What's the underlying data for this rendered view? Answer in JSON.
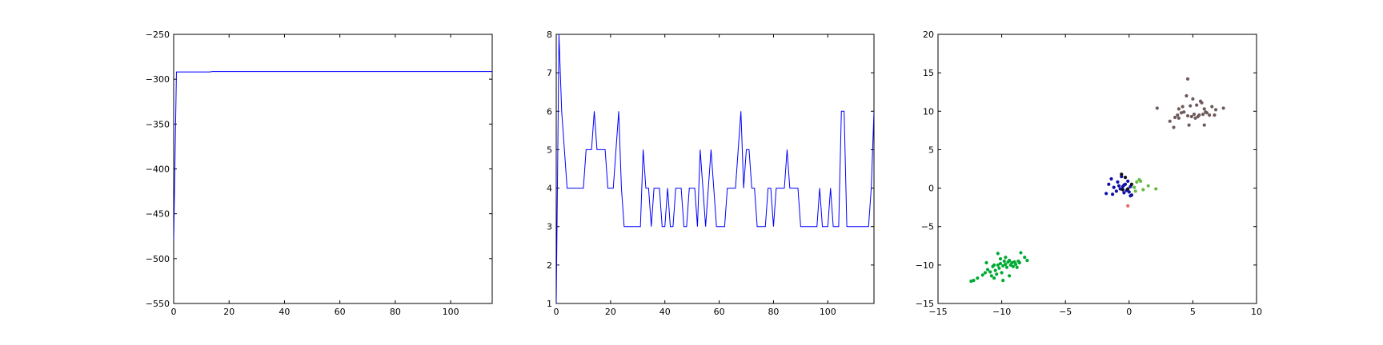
{
  "chart_data": [
    {
      "type": "line",
      "xlim": [
        0,
        115
      ],
      "ylim": [
        -550,
        -250
      ],
      "xticks": [
        "0",
        "20",
        "40",
        "60",
        "80",
        "100"
      ],
      "yticks": [
        "−550",
        "−500",
        "−450",
        "−400",
        "−350",
        "−300",
        "−250"
      ],
      "series": [
        {
          "color": "#0000ff",
          "x": [
            0,
            1,
            13,
            14,
            20,
            40,
            60,
            80,
            100,
            115
          ],
          "y": [
            -480,
            -292,
            -292,
            -291.5,
            -291.5,
            -291.5,
            -291.5,
            -291.5,
            -291.5,
            -291.5
          ]
        }
      ],
      "grid": false
    },
    {
      "type": "line",
      "xlim": [
        0,
        117
      ],
      "ylim": [
        1,
        8
      ],
      "xticks": [
        "0",
        "20",
        "40",
        "60",
        "80",
        "100"
      ],
      "yticks": [
        "1",
        "2",
        "3",
        "4",
        "5",
        "6",
        "7",
        "8"
      ],
      "series": [
        {
          "color": "#0000ff",
          "x": [
            0,
            1,
            2,
            3,
            4,
            5,
            6,
            7,
            8,
            9,
            10,
            11,
            12,
            13,
            14,
            15,
            16,
            17,
            18,
            19,
            20,
            21,
            22,
            23,
            24,
            25,
            26,
            27,
            28,
            29,
            30,
            31,
            32,
            33,
            34,
            35,
            36,
            37,
            38,
            39,
            40,
            41,
            42,
            43,
            44,
            45,
            46,
            47,
            48,
            49,
            50,
            51,
            52,
            53,
            54,
            55,
            56,
            57,
            58,
            59,
            60,
            61,
            62,
            63,
            64,
            65,
            66,
            67,
            68,
            69,
            70,
            71,
            72,
            73,
            74,
            75,
            76,
            77,
            78,
            79,
            80,
            81,
            82,
            83,
            84,
            85,
            86,
            87,
            88,
            89,
            90,
            91,
            92,
            93,
            94,
            95,
            96,
            97,
            98,
            99,
            100,
            101,
            102,
            103,
            104,
            105,
            106,
            107,
            108,
            109,
            110,
            111,
            112,
            113,
            114,
            115,
            116,
            117
          ],
          "y": [
            1,
            8,
            6,
            5,
            4,
            4,
            4,
            4,
            4,
            4,
            4,
            5,
            5,
            5,
            6,
            5,
            5,
            5,
            5,
            4,
            4,
            4,
            5,
            6,
            4,
            3,
            3,
            3,
            3,
            3,
            3,
            3,
            5,
            4,
            4,
            3,
            4,
            4,
            4,
            3,
            3,
            4,
            3,
            3,
            4,
            4,
            4,
            3,
            3,
            4,
            4,
            4,
            3,
            5,
            4,
            3,
            4,
            5,
            4,
            3,
            3,
            3,
            3,
            4,
            4,
            4,
            4,
            5,
            6,
            4,
            5,
            5,
            4,
            4,
            3,
            3,
            3,
            3,
            4,
            4,
            3,
            4,
            4,
            4,
            4,
            5,
            4,
            4,
            4,
            4,
            3,
            3,
            3,
            3,
            3,
            3,
            3,
            4,
            3,
            3,
            3,
            4,
            3,
            3,
            3,
            6,
            6,
            3,
            3,
            3,
            3,
            3,
            3,
            3,
            3,
            3,
            4,
            6
          ]
        }
      ],
      "grid": false
    },
    {
      "type": "scatter",
      "xlim": [
        -15,
        10
      ],
      "ylim": [
        -15,
        20
      ],
      "xticks": [
        "−15",
        "−10",
        "−5",
        "0",
        "5",
        "10"
      ],
      "yticks": [
        "−15",
        "−10",
        "−5",
        "0",
        "5",
        "10",
        "15",
        "20"
      ],
      "series": [
        {
          "color": "#00aa33",
          "points": [
            [
              -12.4,
              -12.1
            ],
            [
              -12.2,
              -12
            ],
            [
              -11.9,
              -11.7
            ],
            [
              -11.5,
              -11.3
            ],
            [
              -11.3,
              -11
            ],
            [
              -11.1,
              -10.6
            ],
            [
              -10.9,
              -10.9
            ],
            [
              -10.8,
              -11.4
            ],
            [
              -10.7,
              -10.2
            ],
            [
              -10.6,
              -11.7
            ],
            [
              -10.5,
              -10.7
            ],
            [
              -10.4,
              -11.2
            ],
            [
              -10.3,
              -10
            ],
            [
              -10.2,
              -10.4
            ],
            [
              -10.1,
              -9.8
            ],
            [
              -10,
              -11
            ],
            [
              -9.9,
              -10.1
            ],
            [
              -9.8,
              -9.5
            ],
            [
              -9.7,
              -9.9
            ],
            [
              -9.6,
              -10.3
            ],
            [
              -9.5,
              -9.6
            ],
            [
              -9.4,
              -11.4
            ],
            [
              -9.3,
              -10
            ],
            [
              -9.2,
              -9.7
            ],
            [
              -9.1,
              -10.2
            ],
            [
              -9,
              -9.6
            ],
            [
              -8.9,
              -9.9
            ],
            [
              -8.8,
              -10.3
            ],
            [
              -8.6,
              -9.7
            ],
            [
              -8.5,
              -8.4
            ],
            [
              -8.2,
              -9
            ],
            [
              -8,
              -9.4
            ],
            [
              -10.3,
              -8.5
            ],
            [
              -9.7,
              -9
            ],
            [
              -9.9,
              -12
            ],
            [
              -11.2,
              -9.7
            ],
            [
              -10.1,
              -9.2
            ],
            [
              -9.4,
              -9.4
            ],
            [
              -8.7,
              -9.5
            ],
            [
              -10.6,
              -10
            ]
          ]
        },
        {
          "color": "#6e5a5a",
          "points": [
            [
              2.2,
              10.4
            ],
            [
              3.2,
              8.7
            ],
            [
              3.5,
              7.9
            ],
            [
              3.6,
              9.2
            ],
            [
              3.8,
              9.5
            ],
            [
              3.9,
              10.3
            ],
            [
              4.1,
              9.8
            ],
            [
              4.3,
              9.9
            ],
            [
              4.5,
              12
            ],
            [
              4.6,
              14.2
            ],
            [
              4.6,
              9.4
            ],
            [
              4.7,
              8.2
            ],
            [
              4.8,
              10.7
            ],
            [
              4.9,
              9.3
            ],
            [
              5,
              11.6
            ],
            [
              5.1,
              9.6
            ],
            [
              5.2,
              9.1
            ],
            [
              5.3,
              10.8
            ],
            [
              5.4,
              9.3
            ],
            [
              5.6,
              11.3
            ],
            [
              5.7,
              11.1
            ],
            [
              5.8,
              9.6
            ],
            [
              5.9,
              8.2
            ],
            [
              6,
              9.9
            ],
            [
              6.1,
              9.8
            ],
            [
              6.3,
              9.5
            ],
            [
              6.5,
              10.6
            ],
            [
              6.7,
              9.5
            ],
            [
              6.8,
              10.2
            ],
            [
              7.4,
              10.4
            ],
            [
              3.9,
              9.1
            ],
            [
              5.5,
              9.5
            ],
            [
              4.2,
              10.6
            ],
            [
              5.9,
              10.3
            ]
          ]
        },
        {
          "color": "#1010aa",
          "points": [
            [
              -1.8,
              -0.7
            ],
            [
              -1.6,
              0.5
            ],
            [
              -1.4,
              1.2
            ],
            [
              -1.3,
              -0.8
            ],
            [
              -1.2,
              0.1
            ],
            [
              -1,
              -0.4
            ],
            [
              -0.9,
              0.8
            ],
            [
              -0.8,
              0.3
            ],
            [
              -0.7,
              -0.1
            ],
            [
              -0.6,
              1.5
            ],
            [
              -0.5,
              0.2
            ],
            [
              -0.4,
              -0.6
            ],
            [
              -0.3,
              0.5
            ],
            [
              -0.2,
              -0.3
            ],
            [
              -0.1,
              0.9
            ],
            [
              0,
              -0.5
            ],
            [
              0.1,
              0.2
            ],
            [
              0.2,
              -0.9
            ],
            [
              0.1,
              -1
            ],
            [
              -0.4,
              0.4
            ]
          ]
        },
        {
          "color": "#101010",
          "points": [
            [
              -0.6,
              1.8
            ],
            [
              -0.3,
              1.4
            ],
            [
              -0.1,
              -0.1
            ],
            [
              0.2,
              0.5
            ],
            [
              -0.5,
              -0.2
            ]
          ]
        },
        {
          "color": "#66bb44",
          "points": [
            [
              0.4,
              0.1
            ],
            [
              0.6,
              0.8
            ],
            [
              0.8,
              1.1
            ],
            [
              1.1,
              -0.2
            ],
            [
              0.9,
              0.9
            ],
            [
              1.5,
              0.3
            ],
            [
              2.1,
              -0.1
            ],
            [
              0.5,
              -0.4
            ]
          ]
        },
        {
          "color": "#ee6666",
          "points": [
            [
              -0.1,
              -2.3
            ]
          ]
        }
      ],
      "grid": false
    }
  ]
}
